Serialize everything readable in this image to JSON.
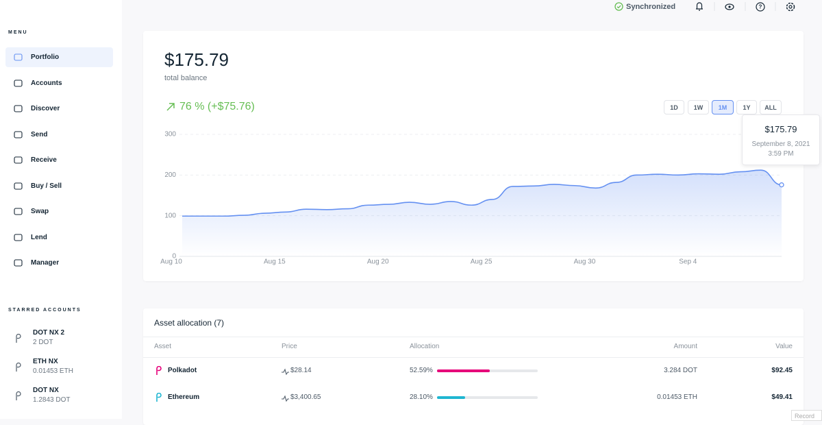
{
  "top_bar": {
    "status": "Synchronized"
  },
  "sidebar": {
    "menu_title": "MENU",
    "menu": [
      "Portfolio",
      "Accounts",
      "Discover",
      "Send",
      "Receive",
      "Buy / Sell",
      "Swap",
      "Lend",
      "Manager"
    ],
    "starred_title": "STARRED ACCOUNTS",
    "starred": [
      {
        "name": "DOT NX 2",
        "balance": "2 DOT"
      },
      {
        "name": "ETH NX",
        "balance": "0.01453 ETH"
      },
      {
        "name": "DOT NX",
        "balance": "1.2843 DOT"
      }
    ]
  },
  "balance": {
    "amount": "$175.79",
    "caption": "total balance",
    "change": "76 % (+$75.76)"
  },
  "ranges": [
    "1D",
    "1W",
    "1M",
    "1Y",
    "ALL"
  ],
  "chart_data": {
    "type": "area",
    "color": "#6490f1",
    "categories": [
      "Aug 10",
      null,
      null,
      null,
      null,
      "Aug 15",
      null,
      null,
      null,
      null,
      "Aug 20",
      null,
      null,
      null,
      null,
      "Aug 25",
      null,
      null,
      null,
      null,
      "Aug 30",
      null,
      null,
      null,
      null,
      "Sep 4",
      null,
      null,
      null,
      null
    ],
    "values": [
      99,
      99,
      99,
      101,
      106,
      109,
      116,
      115,
      117,
      126,
      128,
      133,
      128,
      135,
      126,
      140,
      172,
      173,
      177,
      174,
      168,
      182,
      200,
      202,
      200,
      203,
      202,
      208,
      212,
      175.79
    ],
    "ylim": [
      0,
      300
    ],
    "yticks": [
      0,
      100,
      200,
      300
    ],
    "grid": true
  },
  "tooltip": {
    "value": "$175.79",
    "date": "September 8, 2021",
    "time": "3:59 PM"
  },
  "assets": {
    "title": "Asset allocation (7)",
    "columns": [
      "Asset",
      "Price",
      "Allocation",
      "Amount",
      "Value"
    ],
    "rows": [
      {
        "name": "Polkadot",
        "price": "$28.14",
        "allocation": 52.59,
        "allocation_label": "52.59%",
        "amount": "3.284 DOT",
        "value": "$92.45",
        "color": "#e6007a"
      },
      {
        "name": "Ethereum",
        "price": "$3,400.65",
        "allocation": 28.1,
        "allocation_label": "28.10%",
        "amount": "0.01453 ETH",
        "value": "$49.41",
        "color": "#1fb6d1"
      }
    ]
  },
  "footer": "Record"
}
